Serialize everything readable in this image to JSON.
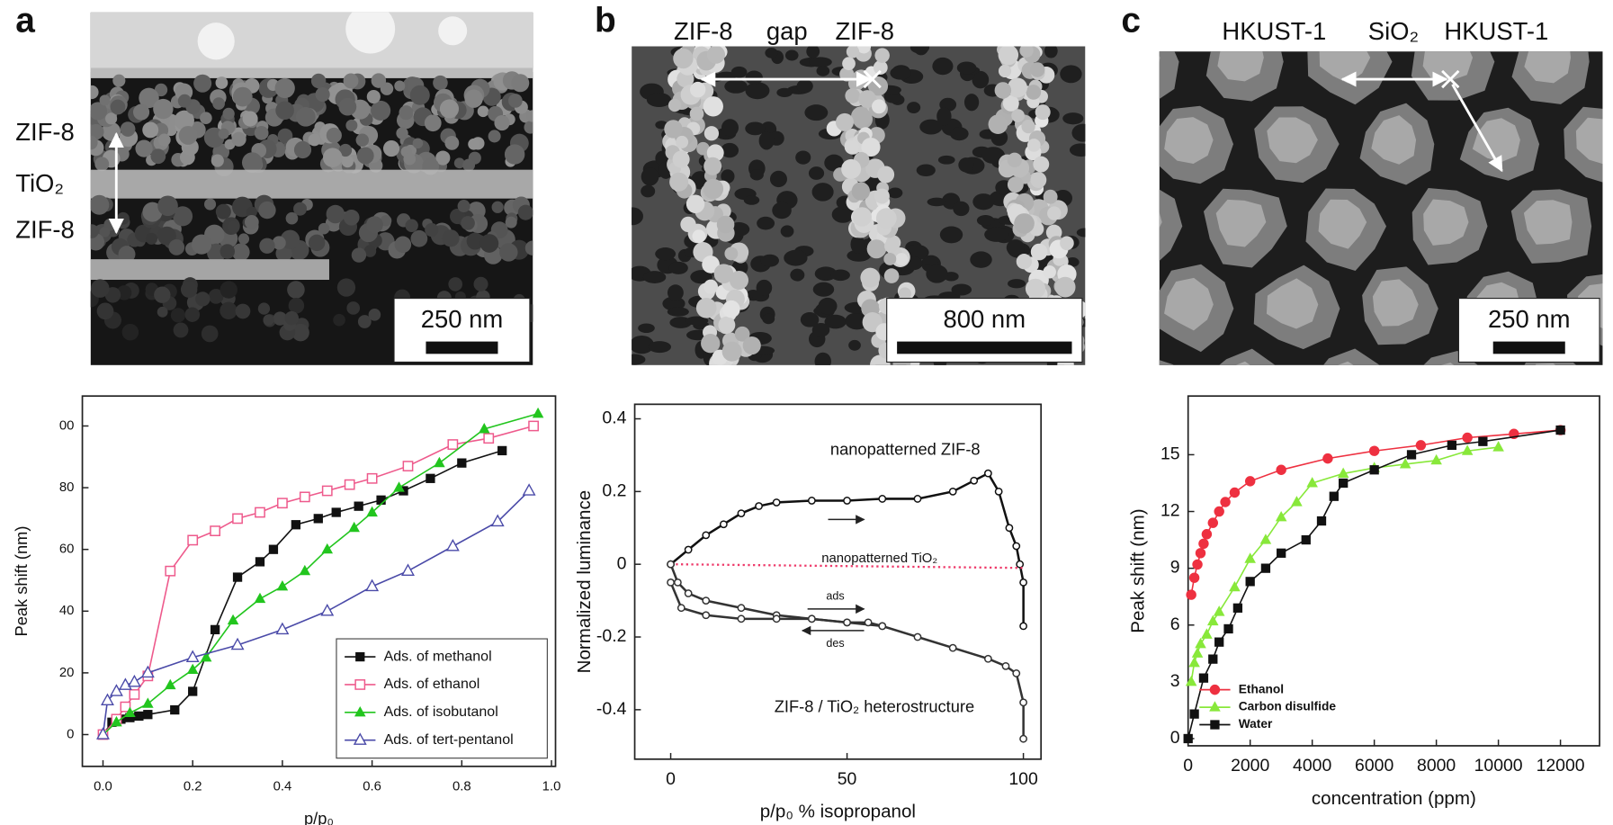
{
  "panels": [
    {
      "label": "a",
      "image_texts": [
        "ZIF-8",
        "TiO₂",
        "ZIF-8"
      ],
      "scale_bar": "250 nm"
    },
    {
      "label": "b",
      "image_texts": [
        "ZIF-8",
        "gap",
        "ZIF-8"
      ],
      "scale_bar": "800 nm"
    },
    {
      "label": "c",
      "image_texts": [
        "HKUST-1",
        "SiO₂",
        "HKUST-1"
      ],
      "scale_bar": "250 nm"
    }
  ],
  "chart_data": [
    {
      "type": "line",
      "x_label": "p/p₀",
      "y_label": "Peak shift (nm)",
      "xlim": [
        -0.046,
        1.009
      ],
      "ylim": [
        -10.3,
        109.7
      ],
      "xticks": [
        {
          "value": 0,
          "label": "0.0"
        },
        {
          "value": 0.2,
          "label": "0.2"
        },
        {
          "value": 0.4,
          "label": "0.4"
        },
        {
          "value": 0.6,
          "label": "0.6"
        },
        {
          "value": 0.8,
          "label": "0.8"
        },
        {
          "value": 1,
          "label": "1.0"
        }
      ],
      "yticks": [
        0,
        20,
        40,
        60,
        80,
        {
          "value": 100,
          "label": "00"
        }
      ],
      "legend": "lower right",
      "series": [
        {
          "name": "Ads. of methanol",
          "color": "#111111",
          "marker": "square",
          "x": [
            0,
            0.02,
            0.04,
            0.06,
            0.08,
            0.1,
            0.16,
            0.2,
            0.25,
            0.3,
            0.35,
            0.38,
            0.43,
            0.48,
            0.52,
            0.57,
            0.62,
            0.67,
            0.73,
            0.8,
            0.89
          ],
          "values": [
            0,
            4,
            5,
            5.5,
            6,
            6.5,
            8,
            14,
            34,
            51,
            56,
            60,
            68,
            70,
            72,
            74,
            76,
            79,
            83,
            88,
            92
          ]
        },
        {
          "name": "Ads. of ethanol",
          "color": "#ee5a8c",
          "marker": "square-open",
          "x": [
            0,
            0.03,
            0.05,
            0.07,
            0.1,
            0.15,
            0.2,
            0.25,
            0.3,
            0.35,
            0.4,
            0.45,
            0.5,
            0.55,
            0.6,
            0.68,
            0.78,
            0.86,
            0.96
          ],
          "values": [
            0,
            5,
            9,
            13,
            19,
            53,
            63,
            66,
            70,
            72,
            75,
            77,
            79,
            81,
            83,
            87,
            94,
            96,
            100
          ]
        },
        {
          "name": "Ads. of isobutanol",
          "color": "#22c51e",
          "marker": "triangle",
          "x": [
            0,
            0.03,
            0.06,
            0.1,
            0.15,
            0.2,
            0.23,
            0.29,
            0.35,
            0.4,
            0.45,
            0.5,
            0.56,
            0.6,
            0.66,
            0.75,
            0.85,
            0.97
          ],
          "values": [
            0,
            4,
            7,
            10,
            16,
            21,
            25,
            37,
            44,
            48,
            53,
            60,
            67,
            72,
            80,
            88,
            99,
            104
          ]
        },
        {
          "name": "Ads. of tert-pentanol",
          "color": "#4a4aa8",
          "marker": "triangle-open",
          "x": [
            0,
            0.01,
            0.03,
            0.05,
            0.07,
            0.1,
            0.2,
            0.3,
            0.4,
            0.5,
            0.6,
            0.68,
            0.78,
            0.88,
            0.95
          ],
          "values": [
            0,
            11,
            14,
            16,
            17,
            20,
            25,
            29,
            34,
            40,
            48,
            53,
            61,
            69,
            79
          ]
        }
      ]
    },
    {
      "type": "line",
      "x_label": "p/p₀ % isopropanol",
      "y_label": "Normalized luminance",
      "xlim": [
        -10.2,
        105
      ],
      "ylim": [
        -0.536,
        0.44
      ],
      "xticks": [
        0,
        50,
        100
      ],
      "yticks": [
        0.4,
        0.2,
        0,
        -0.2,
        -0.4
      ],
      "annotations": [
        {
          "text": "nanopatterned ZIF-8",
          "color": "#111111"
        },
        {
          "text": "nanopatterned TiO₂",
          "color": "#ee3a6a"
        },
        {
          "text": "ads",
          "color": "#333333"
        },
        {
          "text": "des",
          "color": "#333333"
        },
        {
          "text": "ZIF-8 / TiO₂ heterostructure",
          "color": "#111111"
        }
      ],
      "series": [
        {
          "color": "#111111",
          "marker": "circle-open",
          "x": [
            0,
            5,
            10,
            15,
            20,
            25,
            30,
            40,
            50,
            60,
            70,
            80,
            86,
            90,
            93,
            96,
            98,
            99,
            100,
            100
          ],
          "values": [
            0,
            0.04,
            0.08,
            0.11,
            0.14,
            0.16,
            0.17,
            0.175,
            0.175,
            0.18,
            0.18,
            0.2,
            0.23,
            0.25,
            0.2,
            0.1,
            0.05,
            0,
            -0.05,
            -0.17
          ]
        },
        {
          "color": "#ee3a6a",
          "marker": "none",
          "line_style": "dotted",
          "x": [
            0,
            100
          ],
          "values": [
            0,
            -0.01
          ]
        },
        {
          "color": "#333333",
          "marker": "circle-open",
          "x": [
            0,
            2,
            5,
            10,
            20,
            30,
            40,
            50,
            60,
            70,
            80,
            90,
            95,
            98,
            100,
            100
          ],
          "values": [
            0,
            -0.05,
            -0.08,
            -0.1,
            -0.12,
            -0.14,
            -0.15,
            -0.16,
            -0.17,
            -0.2,
            -0.23,
            -0.26,
            -0.28,
            -0.3,
            -0.38,
            -0.48
          ]
        },
        {
          "color": "#333333",
          "marker": "circle-open",
          "x": [
            0,
            3,
            10,
            20,
            30,
            40,
            50,
            56,
            60
          ],
          "values": [
            -0.05,
            -0.12,
            -0.14,
            -0.15,
            -0.15,
            -0.15,
            -0.16,
            -0.16,
            -0.17
          ]
        }
      ]
    },
    {
      "type": "line",
      "x_label": "concentration (ppm)",
      "y_label": "Peak shift (nm)",
      "xlim": [
        0,
        13260
      ],
      "ylim": [
        -0.38,
        18.1
      ],
      "xticks": [
        0,
        2000,
        4000,
        6000,
        8000,
        10000,
        12000
      ],
      "yticks": [
        0,
        3,
        6,
        9,
        12,
        15
      ],
      "legend": "lower left",
      "series": [
        {
          "name": "Ethanol",
          "color": "#ee3040",
          "marker": "circle",
          "x": [
            100,
            200,
            300,
            400,
            500,
            600,
            800,
            1000,
            1200,
            1500,
            2000,
            3000,
            4500,
            6000,
            7500,
            9000,
            10500,
            12000
          ],
          "values": [
            7.6,
            8.5,
            9.2,
            9.8,
            10.3,
            10.8,
            11.4,
            12,
            12.5,
            13,
            13.6,
            14.2,
            14.8,
            15.2,
            15.5,
            15.9,
            16.1,
            16.3
          ]
        },
        {
          "name": "Carbon disulfide",
          "color": "#88e83a",
          "marker": "triangle",
          "x": [
            100,
            200,
            300,
            400,
            600,
            800,
            1000,
            1500,
            2000,
            2500,
            3000,
            3500,
            4000,
            5000,
            6000,
            7000,
            8000,
            9000,
            10000
          ],
          "values": [
            3,
            4,
            4.5,
            5,
            5.5,
            6.2,
            6.7,
            8,
            9.5,
            10.5,
            11.7,
            12.5,
            13.5,
            14,
            14.3,
            14.5,
            14.7,
            15.2,
            15.4
          ]
        },
        {
          "name": "Water",
          "color": "#111111",
          "marker": "square",
          "x": [
            0,
            200,
            500,
            800,
            1000,
            1300,
            1600,
            2000,
            2500,
            3000,
            3800,
            4300,
            4700,
            5000,
            6000,
            7200,
            8500,
            9500,
            12000
          ],
          "values": [
            0,
            1.3,
            3.2,
            4.2,
            5.1,
            5.8,
            6.9,
            8.3,
            9,
            9.8,
            10.5,
            11.5,
            12.8,
            13.5,
            14.2,
            15,
            15.5,
            15.7,
            16.3
          ]
        }
      ]
    }
  ]
}
